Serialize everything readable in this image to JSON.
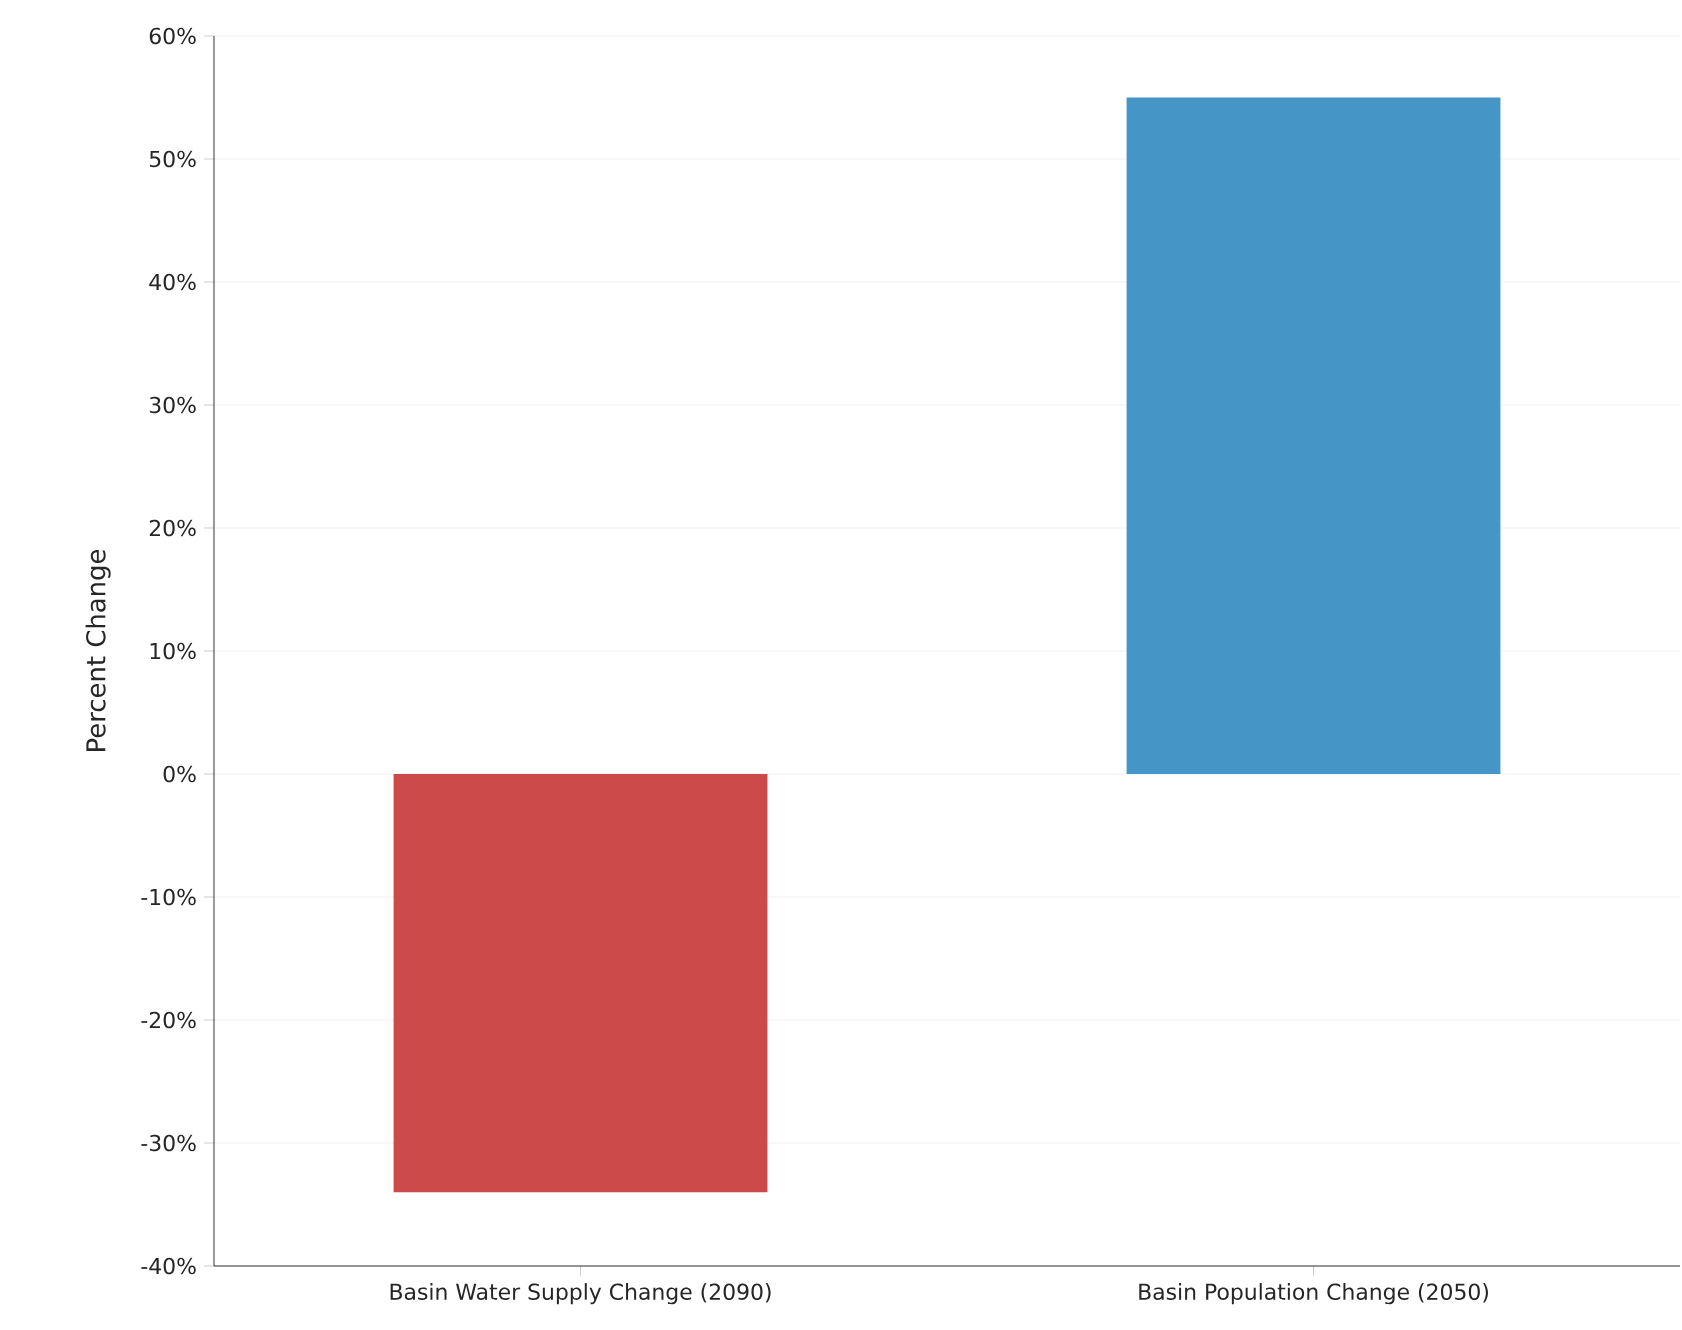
{
  "chart_data": {
    "type": "bar",
    "ylabel": "Percent Change",
    "categories": [
      "Basin Water Supply Change (2090)",
      "Basin Population Change (2050)"
    ],
    "values": [
      -34,
      55
    ],
    "colors": [
      "#cc4a4a",
      "#4596c6"
    ],
    "ylim": [
      -40,
      60
    ],
    "yticks": [
      {
        "value": -40,
        "label": "-40%"
      },
      {
        "value": -30,
        "label": "-30%"
      },
      {
        "value": -20,
        "label": "-20%"
      },
      {
        "value": -10,
        "label": "-10%"
      },
      {
        "value": 0,
        "label": "0%"
      },
      {
        "value": 10,
        "label": "10%"
      },
      {
        "value": 20,
        "label": "20%"
      },
      {
        "value": 30,
        "label": "30%"
      },
      {
        "value": 40,
        "label": "40%"
      },
      {
        "value": 50,
        "label": "50%"
      },
      {
        "value": 60,
        "label": "60%"
      }
    ],
    "grid": "y"
  }
}
